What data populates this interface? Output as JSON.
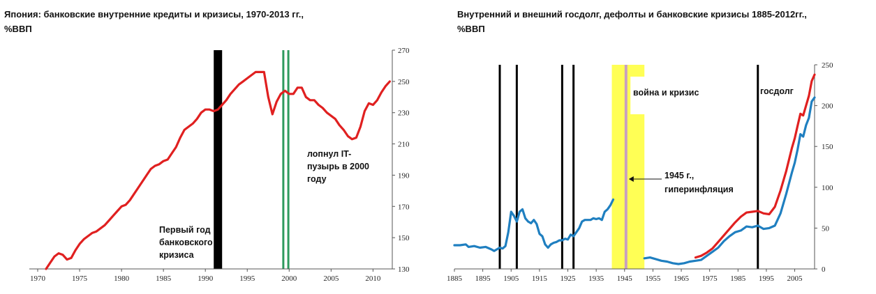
{
  "chart_data": [
    {
      "type": "line",
      "title": "Япония: банковские внутренние кредиты и кризисы, 1970-2013 гг.,\n%ВВП",
      "xlabel": "",
      "ylabel": "",
      "xlim": [
        1969,
        2012.3
      ],
      "ylim": [
        130,
        270
      ],
      "x_ticks": [
        "1970",
        "1975",
        "1980",
        "1985",
        "1990",
        "1995",
        "2000",
        "2005",
        "2010"
      ],
      "y_ticks": [
        "130",
        "150",
        "170",
        "190",
        "210",
        "230",
        "250",
        "270"
      ],
      "y_axis_side": "right",
      "series": [
        {
          "color": "#e02020",
          "x": [
            1971,
            1971.5,
            1972,
            1972.5,
            1973,
            1973.5,
            1974,
            1974.5,
            1975,
            1975.5,
            1976,
            1976.5,
            1977,
            1977.5,
            1978,
            1978.5,
            1979,
            1979.5,
            1980,
            1980.5,
            1981,
            1981.5,
            1982,
            1982.5,
            1983,
            1983.5,
            1984,
            1984.5,
            1985,
            1985.5,
            1986,
            1986.5,
            1987,
            1987.5,
            1988,
            1988.5,
            1989,
            1989.5,
            1990,
            1990.5,
            1991,
            1991.5,
            1992,
            1992.5,
            1993,
            1993.5,
            1994,
            1994.5,
            1995,
            1995.5,
            1996,
            1996.5,
            1997,
            1997.5,
            1998,
            1998.5,
            1999,
            1999.5,
            2000,
            2000.5,
            2001,
            2001.5,
            2002,
            2002.5,
            2003,
            2003.5,
            2004,
            2004.5,
            2005,
            2005.5,
            2006,
            2006.5,
            2007,
            2007.5,
            2008,
            2008.5,
            2009,
            2009.5,
            2010,
            2010.5,
            2011,
            2011.5,
            2012
          ],
          "values": [
            130,
            134,
            138,
            140,
            139,
            136,
            137,
            142,
            146,
            149,
            151,
            153,
            154,
            156,
            158,
            161,
            164,
            167,
            170,
            171,
            174,
            178,
            182,
            186,
            190,
            194,
            196,
            197,
            199,
            200,
            204,
            208,
            214,
            219,
            221,
            223,
            226,
            230,
            232,
            232,
            231,
            232,
            235,
            238,
            242,
            245,
            248,
            250,
            252,
            254,
            256,
            256,
            256,
            240,
            229,
            237,
            242,
            244,
            242,
            242,
            246,
            246,
            240,
            238,
            238,
            235,
            233,
            230,
            228,
            226,
            222,
            219,
            215,
            213,
            214,
            221,
            231,
            236,
            235,
            238,
            243,
            247,
            250
          ]
        }
      ],
      "crisis_markers": [
        {
          "x": 1991.5,
          "type": "bar",
          "color": "#000000"
        },
        {
          "x": 1999.3,
          "type": "line",
          "color": "#2e9a5e"
        },
        {
          "x": 1999.9,
          "type": "line",
          "color": "#2e9a5e"
        }
      ],
      "annotations": [
        {
          "id": "first-crisis",
          "lines": [
            "Первый год",
            "банковского",
            "кризиса"
          ]
        },
        {
          "id": "it-bubble",
          "lines": [
            "лопнул IT-",
            "пузырь в 2000",
            "году"
          ]
        }
      ]
    },
    {
      "type": "line",
      "title": "Внутренний и внешний госдолг, дефолты и банковские кризисы 1885-2012гг.,\n%ВВП",
      "xlabel": "",
      "ylabel": "",
      "xlim": [
        1885,
        2012
      ],
      "ylim": [
        0,
        250
      ],
      "x_ticks": [
        "1885",
        "1895",
        "1905",
        "1915",
        "1925",
        "1935",
        "1945",
        "1955",
        "1965",
        "1975",
        "1985",
        "1995",
        "2005"
      ],
      "y_ticks": [
        "0",
        "50",
        "100",
        "150",
        "200",
        "250"
      ],
      "y_axis_side": "right",
      "series": [
        {
          "color": "#1f7fc0",
          "x": [
            1885,
            1887,
            1889,
            1890,
            1892,
            1894,
            1896,
            1898,
            1899,
            1900,
            1901,
            1902,
            1903,
            1904,
            1905,
            1906,
            1907,
            1908,
            1909,
            1910,
            1911,
            1912,
            1913,
            1914,
            1915,
            1916,
            1917,
            1918,
            1919,
            1920,
            1921,
            1922,
            1923,
            1924,
            1925,
            1926,
            1927,
            1928,
            1929,
            1930,
            1931,
            1932,
            1933,
            1934,
            1935,
            1936,
            1937,
            1938,
            1939,
            1940,
            1941
          ],
          "values": [
            29,
            29,
            30,
            27,
            28,
            26,
            27,
            24,
            22,
            24,
            26,
            25,
            28,
            45,
            70,
            65,
            58,
            70,
            73,
            62,
            58,
            56,
            60,
            55,
            43,
            40,
            30,
            26,
            30,
            32,
            33,
            35,
            35,
            37,
            36,
            42,
            40,
            45,
            50,
            58,
            60,
            60,
            60,
            62,
            61,
            62,
            60,
            70,
            73,
            78,
            85
          ]
        },
        {
          "color": "#1f7fc0",
          "x": [
            1952,
            1954,
            1956,
            1958,
            1960,
            1962,
            1964,
            1966,
            1968,
            1970,
            1972,
            1974,
            1976,
            1978,
            1980,
            1982,
            1984,
            1986,
            1988,
            1990,
            1992,
            1994,
            1996,
            1998,
            2000,
            2002,
            2004,
            2005,
            2006,
            2007,
            2008,
            2009,
            2010,
            2011,
            2012
          ],
          "values": [
            13,
            14,
            12,
            10,
            9,
            7,
            6,
            7,
            9,
            10,
            11,
            16,
            21,
            26,
            34,
            40,
            45,
            47,
            52,
            51,
            53,
            49,
            50,
            53,
            68,
            92,
            118,
            130,
            146,
            165,
            162,
            176,
            185,
            205,
            210
          ]
        },
        {
          "color": "#e02020",
          "x": [
            1970,
            1972,
            1974,
            1976,
            1978,
            1980,
            1982,
            1984,
            1986,
            1988,
            1990,
            1992,
            1994,
            1996,
            1998,
            2000,
            2002,
            2004,
            2005,
            2006,
            2007,
            2008,
            2009,
            2010,
            2011,
            2012
          ],
          "values": [
            14,
            16,
            20,
            25,
            33,
            41,
            49,
            57,
            64,
            69,
            70,
            71,
            68,
            67,
            76,
            96,
            120,
            148,
            160,
            175,
            190,
            188,
            200,
            212,
            230,
            238
          ]
        }
      ],
      "crisis_markers": [
        {
          "x": 1901,
          "type": "line",
          "color": "#000000"
        },
        {
          "x": 1907,
          "type": "line",
          "color": "#000000"
        },
        {
          "x": 1923,
          "type": "line",
          "color": "#000000"
        },
        {
          "x": 1927,
          "type": "line",
          "color": "#000000"
        },
        {
          "x": 1992,
          "type": "line",
          "color": "#000000"
        }
      ],
      "highlight_band": {
        "x0": 1941,
        "x1": 1952,
        "color": "#ffff55",
        "marker_x": 1945.5,
        "marker_color": "#c8a0c0"
      },
      "annotations": [
        {
          "id": "war-crisis",
          "lines": [
            "война и кризис"
          ]
        },
        {
          "id": "hyperinflation",
          "lines": [
            "1945 г.,",
            "гиперинфляция"
          ]
        },
        {
          "id": "gov-debt",
          "lines": [
            "госдолг"
          ]
        }
      ]
    }
  ]
}
